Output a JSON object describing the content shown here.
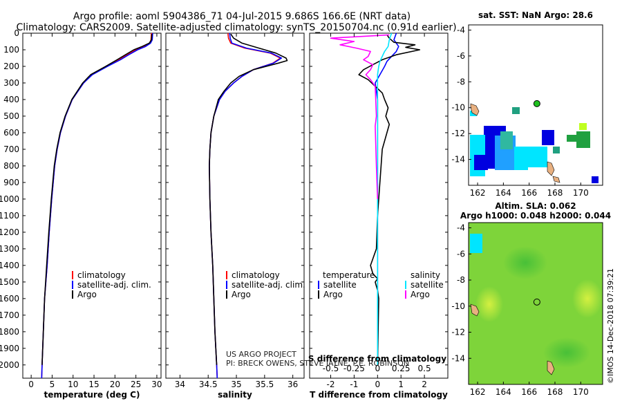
{
  "header": {
    "line1": "Argo profile: aoml 5904386_71 04-Jul-2015 9.686S 166.6E (NRT data)",
    "line2": "Climatology: CARS2009. Satellite-adjusted climatology: synTS_20150704.nc (0.91d earlier)"
  },
  "credit": {
    "line1": "US ARGO PROJECT",
    "line2": "PI: BRECK OWENS, STEVE JAYNE, P.E. ROBINSON"
  },
  "stamp": "©IMOS 14-Dec-2018 07:39:21",
  "colors": {
    "climatology": "#ff0000",
    "satellite": "#0000ff",
    "argo": "#000000",
    "sal_sat": "#00e5ff",
    "sal_argo": "#ff00ff"
  },
  "chart_data": [
    {
      "id": "temperature",
      "type": "line",
      "xlabel": "temperature (deg C)",
      "xlim": [
        -2,
        31
      ],
      "xticks": [
        0,
        5,
        10,
        15,
        20,
        25,
        30
      ],
      "ylim": [
        2080,
        0
      ],
      "yticks": [
        0,
        100,
        200,
        300,
        400,
        500,
        600,
        700,
        800,
        900,
        1000,
        1100,
        1200,
        1300,
        1400,
        1500,
        1600,
        1700,
        1800,
        1900,
        2000
      ],
      "legend": [
        "climatology",
        "satellite-adj. clim.",
        "Argo"
      ],
      "series": [
        {
          "name": "climatology",
          "color": "#ff0000",
          "depth": [
            0,
            40,
            60,
            80,
            100,
            130,
            160,
            200,
            250,
            300,
            400,
            500,
            600,
            700,
            800,
            1000,
            1200,
            1400,
            1600,
            1800,
            2000,
            2080
          ],
          "values": [
            28.7,
            28.6,
            28.3,
            27.0,
            25.0,
            23.0,
            21.0,
            18.0,
            14.5,
            12.5,
            9.8,
            8.2,
            7.0,
            6.2,
            5.6,
            4.9,
            4.3,
            3.8,
            3.2,
            2.9,
            2.6,
            2.5
          ]
        },
        {
          "name": "satellite-adj. clim.",
          "color": "#0000ff",
          "depth": [
            0,
            40,
            60,
            80,
            100,
            130,
            160,
            200,
            250,
            300,
            400,
            500,
            600,
            700,
            800,
            1000,
            1200,
            1400,
            1600,
            1800,
            2000,
            2080
          ],
          "values": [
            29.0,
            28.9,
            28.5,
            27.3,
            25.4,
            23.3,
            21.3,
            18.2,
            14.6,
            12.5,
            9.8,
            8.2,
            7.0,
            6.2,
            5.6,
            4.9,
            4.3,
            3.8,
            3.2,
            2.9,
            2.6,
            2.5
          ]
        },
        {
          "name": "Argo",
          "color": "#000000",
          "depth": [
            5,
            40,
            60,
            80,
            100,
            130,
            160,
            200,
            250,
            300,
            400,
            500,
            600,
            700,
            800,
            1000,
            1200,
            1400,
            1600,
            1800,
            2000
          ],
          "values": [
            28.8,
            28.7,
            28.2,
            26.5,
            24.5,
            22.5,
            20.5,
            17.8,
            14.2,
            12.3,
            9.7,
            8.1,
            6.9,
            6.1,
            5.5,
            4.8,
            4.2,
            3.7,
            3.2,
            2.9,
            2.6
          ]
        }
      ]
    },
    {
      "id": "salinity",
      "type": "line",
      "xlabel": "salinity",
      "xlim": [
        33.75,
        36.2
      ],
      "xticks": [
        34,
        34.5,
        35,
        35.5,
        36
      ],
      "ylim": [
        2080,
        0
      ],
      "legend": [
        "climatology",
        "satellite-adj. clim.",
        "Argo"
      ],
      "series": [
        {
          "name": "climatology",
          "color": "#ff0000",
          "depth": [
            0,
            30,
            60,
            90,
            120,
            150,
            180,
            220,
            260,
            300,
            350,
            400,
            500,
            600,
            700,
            800,
            1000,
            1200,
            1400,
            1600,
            1800,
            2000,
            2080
          ],
          "values": [
            34.85,
            34.86,
            34.9,
            35.15,
            35.6,
            35.78,
            35.65,
            35.3,
            35.1,
            34.95,
            34.8,
            34.7,
            34.6,
            34.55,
            34.53,
            34.52,
            34.53,
            34.55,
            34.58,
            34.6,
            34.62,
            34.65,
            34.66
          ]
        },
        {
          "name": "satellite-adj. clim.",
          "color": "#0000ff",
          "depth": [
            0,
            30,
            60,
            90,
            120,
            150,
            180,
            220,
            260,
            300,
            350,
            400,
            500,
            600,
            700,
            800,
            1000,
            1200,
            1400,
            1600,
            1800,
            2000,
            2080
          ],
          "values": [
            34.88,
            34.89,
            34.92,
            35.18,
            35.62,
            35.8,
            35.66,
            35.3,
            35.1,
            34.95,
            34.8,
            34.7,
            34.6,
            34.55,
            34.53,
            34.52,
            34.53,
            34.55,
            34.58,
            34.6,
            34.62,
            34.65,
            34.66
          ]
        },
        {
          "name": "Argo",
          "color": "#000000",
          "depth": [
            5,
            30,
            60,
            90,
            120,
            150,
            165,
            180,
            220,
            260,
            300,
            350,
            400,
            500,
            600,
            700,
            800,
            1000,
            1200,
            1400,
            1600,
            1800,
            2000
          ],
          "values": [
            34.9,
            34.95,
            35.1,
            35.4,
            35.7,
            35.88,
            35.9,
            35.75,
            35.3,
            35.05,
            34.9,
            34.78,
            34.68,
            34.6,
            34.55,
            34.53,
            34.52,
            34.53,
            34.55,
            34.58,
            34.6,
            34.62,
            34.65
          ]
        }
      ]
    },
    {
      "id": "difference",
      "type": "line",
      "xlabel": "T difference from climatology",
      "xlabel_top": "S difference from climatology",
      "xlim": [
        -2.9,
        3.0
      ],
      "xticks": [
        -2,
        -1,
        0,
        1,
        2
      ],
      "xticks_top": [
        "-0.5",
        "-0.25",
        "0",
        "0.25",
        "0.5"
      ],
      "ylim": [
        2080,
        0
      ],
      "legend_temperature_title": "temperature",
      "legend_salinity_title": "salinity",
      "legend_temperature": [
        "satellite",
        "Argo"
      ],
      "legend_salinity": [
        "satellite",
        "Argo"
      ],
      "series": [
        {
          "name": "T satellite",
          "color": "#0000ff",
          "depth": [
            0,
            40,
            80,
            110,
            140,
            170,
            200,
            250,
            300,
            400,
            600,
            1000,
            2000
          ],
          "values": [
            0.8,
            0.7,
            0.9,
            0.8,
            0.6,
            0.4,
            0.3,
            0.1,
            -0.1,
            0.0,
            0.0,
            0.0,
            0.0
          ]
        },
        {
          "name": "T Argo",
          "color": "#000000",
          "depth": [
            10,
            30,
            55,
            70,
            85,
            100,
            130,
            160,
            190,
            220,
            250,
            280,
            320,
            360,
            400,
            450,
            500,
            550,
            600,
            650,
            700,
            900,
            1100,
            1300,
            1400,
            1450,
            1480,
            1500,
            1550,
            1600,
            2000
          ],
          "values": [
            0.4,
            0.5,
            0.7,
            1.6,
            1.2,
            1.8,
            0.8,
            0.2,
            -0.2,
            -0.6,
            -0.8,
            -0.4,
            -0.1,
            0.2,
            0.3,
            0.45,
            0.35,
            0.5,
            0.4,
            0.3,
            0.2,
            0.1,
            0.0,
            -0.05,
            -0.3,
            -0.2,
            0.0,
            -0.1,
            0.0,
            0.05,
            0.0
          ]
        },
        {
          "name": "S satellite",
          "color": "#00e5ff",
          "depth": [
            0,
            40,
            80,
            110,
            140,
            170,
            200,
            250,
            300,
            400,
            600,
            1000,
            2000
          ],
          "values": [
            0.6,
            0.5,
            0.45,
            0.3,
            0.2,
            0.1,
            0.05,
            0.0,
            0.0,
            0.0,
            0.0,
            0.0,
            0.0
          ]
        },
        {
          "name": "S Argo",
          "color": "#ff00ff",
          "depth": [
            10,
            30,
            50,
            70,
            90,
            110,
            140,
            160,
            190,
            220,
            250,
            280,
            320,
            500,
            560,
            800,
            1000
          ],
          "values": [
            0.5,
            -2.0,
            -1.0,
            -1.6,
            -0.9,
            -0.3,
            -0.4,
            -0.6,
            -0.2,
            -0.3,
            -0.5,
            -0.3,
            -0.1,
            -0.05,
            -0.1,
            -0.05,
            0.0
          ]
        }
      ]
    },
    {
      "id": "sst_map",
      "type": "heatmap",
      "title": "sat. SST: NaN Argo: 28.6",
      "xlim": [
        161.3,
        171.7
      ],
      "ylim": [
        -16.0,
        -3.6
      ],
      "xticks": [
        162,
        164,
        166,
        168,
        170
      ],
      "yticks": [
        -4,
        -6,
        -8,
        -10,
        -12,
        -14
      ],
      "argo_position": [
        166.6,
        -9.686
      ]
    },
    {
      "id": "sla_map",
      "type": "heatmap",
      "title1": "Altim. SLA: 0.062",
      "title2": "Argo h1000: 0.048 h2000: 0.044",
      "xlim": [
        161.3,
        171.7
      ],
      "ylim": [
        -16.0,
        -3.6
      ],
      "xticks": [
        162,
        164,
        166,
        168,
        170
      ],
      "yticks": [
        -4,
        -6,
        -8,
        -10,
        -12,
        -14
      ],
      "argo_position": [
        166.6,
        -9.686
      ]
    }
  ]
}
